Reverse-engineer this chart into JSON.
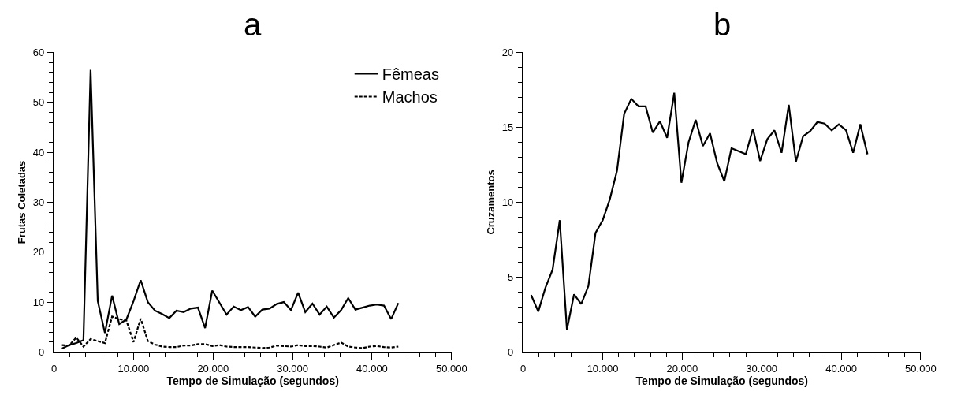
{
  "chart_data": [
    {
      "type": "line",
      "title": "a",
      "xlabel": "Tempo de Simulação (segundos)",
      "ylabel": "Frutas Coletadas",
      "x": [
        1000,
        1900,
        2800,
        3700,
        4600,
        5500,
        6400,
        7300,
        8200,
        9100,
        10000,
        10900,
        11800,
        12700,
        13600,
        14500,
        15400,
        16300,
        17200,
        18100,
        19000,
        19900,
        20800,
        21700,
        22600,
        23500,
        24400,
        25300,
        26200,
        27100,
        28000,
        28900,
        29800,
        30700,
        31600,
        32500,
        33400,
        34300,
        35200,
        36100,
        37000,
        37900,
        38800,
        39700,
        40600,
        41500,
        42400,
        43300
      ],
      "series": [
        {
          "name": "Fêmeas",
          "color": "#000000",
          "line_style": "solid",
          "values": [
            0.7,
            1.4,
            1.8,
            2.4,
            56.5,
            10.2,
            3.8,
            11.3,
            5.6,
            6.5,
            10.2,
            14.4,
            10.0,
            8.3,
            7.6,
            6.8,
            8.3,
            8.0,
            8.7,
            8.9,
            4.8,
            12.3,
            9.9,
            7.5,
            9.1,
            8.4,
            9.0,
            7.1,
            8.5,
            8.7,
            9.6,
            10.0,
            8.4,
            11.9,
            8.0,
            9.7,
            7.5,
            9.1,
            6.9,
            8.4,
            10.8,
            8.5,
            8.9,
            9.3,
            9.5,
            9.3,
            6.6,
            9.8
          ]
        },
        {
          "name": "Machos",
          "color": "#000000",
          "line_style": "dashed",
          "values": [
            1.4,
            1.3,
            2.9,
            1.1,
            2.6,
            2.2,
            1.8,
            7.1,
            6.6,
            6.3,
            2.0,
            6.7,
            2.2,
            1.5,
            1.1,
            1.0,
            1.0,
            1.3,
            1.3,
            1.6,
            1.6,
            1.2,
            1.4,
            1.1,
            1.0,
            1.0,
            1.0,
            0.9,
            0.8,
            0.9,
            1.3,
            1.2,
            1.1,
            1.4,
            1.2,
            1.2,
            1.1,
            0.9,
            1.4,
            1.9,
            1.1,
            0.9,
            0.8,
            1.1,
            1.2,
            1.0,
            0.9,
            1.1
          ]
        }
      ],
      "xlim": [
        0,
        50000
      ],
      "xticks": [
        0,
        {
          "value": 10000,
          "label": "10.000"
        },
        {
          "value": 20000,
          "label": "20.000"
        },
        {
          "value": 30000,
          "label": "30.000"
        },
        {
          "value": 40000,
          "label": "40.000"
        },
        {
          "value": 50000,
          "label": "50.000"
        }
      ],
      "ylim": [
        0,
        60
      ],
      "yticks": [
        0,
        10,
        20,
        30,
        40,
        50,
        60
      ],
      "grid": false,
      "marker": "none",
      "legend": "top right"
    },
    {
      "type": "line",
      "title": "b",
      "xlabel": "Tempo de Simulação (segundos)",
      "ylabel": "Cruzamentos",
      "x": [
        1000,
        1900,
        2800,
        3700,
        4600,
        5500,
        6400,
        7300,
        8200,
        9100,
        10000,
        10900,
        11800,
        12700,
        13600,
        14500,
        15400,
        16300,
        17200,
        18100,
        19000,
        19900,
        20800,
        21700,
        22600,
        23500,
        24400,
        25300,
        26200,
        27100,
        28000,
        28900,
        29800,
        30700,
        31600,
        32500,
        33400,
        34300,
        35200,
        36100,
        37000,
        37900,
        38800,
        39700,
        40600,
        41500,
        42400,
        43300
      ],
      "series": [
        {
          "color": "#000000",
          "line_style": "solid",
          "values": [
            3.8,
            2.7,
            4.3,
            5.5,
            8.8,
            1.5,
            3.85,
            3.2,
            4.4,
            7.95,
            8.8,
            10.2,
            12.1,
            15.9,
            16.9,
            16.4,
            16.4,
            14.65,
            15.4,
            14.3,
            17.3,
            11.3,
            14.0,
            15.5,
            13.75,
            14.6,
            12.6,
            11.4,
            13.6,
            13.4,
            13.2,
            14.9,
            12.75,
            14.2,
            14.8,
            13.3,
            16.5,
            12.7,
            14.4,
            14.75,
            15.35,
            15.25,
            14.8,
            15.2,
            14.8,
            13.3,
            15.2,
            13.2
          ]
        }
      ],
      "xlim": [
        0,
        50000
      ],
      "xticks": [
        0,
        {
          "value": 10000,
          "label": "10.000"
        },
        {
          "value": 20000,
          "label": "20.000"
        },
        {
          "value": 30000,
          "label": "30.000"
        },
        {
          "value": 40000,
          "label": "40.000"
        },
        {
          "value": 50000,
          "label": "50.000"
        }
      ],
      "ylim": [
        0,
        20
      ],
      "yticks": [
        0,
        5,
        10,
        15,
        20
      ],
      "grid": false,
      "marker": "none",
      "legend": false
    }
  ]
}
